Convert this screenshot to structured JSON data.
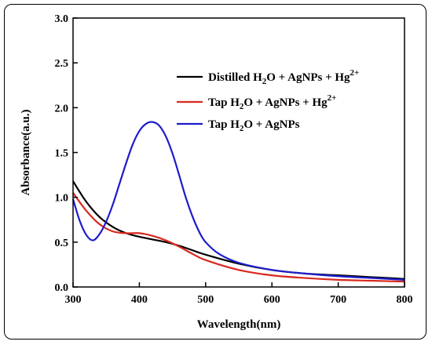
{
  "chart_data": {
    "type": "line",
    "xlabel": "Wavelength(nm)",
    "ylabel": "Absorbance(a.u.)",
    "xlim": [
      300,
      800
    ],
    "ylim": [
      0.0,
      3.0
    ],
    "xticks": [
      "300",
      "400",
      "500",
      "600",
      "700",
      "800"
    ],
    "yticks": [
      "0.0",
      "0.5",
      "1.0",
      "1.5",
      "2.0",
      "2.5",
      "3.0"
    ],
    "grid": false,
    "legend_position": "top-right",
    "series": [
      {
        "name_parts": [
          "Distilled H",
          "2",
          "O + AgNPs + Hg",
          "2+"
        ],
        "name_styles": [
          "normal",
          "sub",
          "normal",
          "sup"
        ],
        "color": "#000000",
        "x": [
          300,
          320,
          340,
          360,
          380,
          400,
          420,
          440,
          460,
          480,
          500,
          550,
          600,
          650,
          700,
          750,
          800
        ],
        "y": [
          1.18,
          0.95,
          0.78,
          0.67,
          0.6,
          0.56,
          0.53,
          0.5,
          0.46,
          0.41,
          0.36,
          0.26,
          0.19,
          0.15,
          0.13,
          0.11,
          0.09
        ]
      },
      {
        "name_parts": [
          "Tap H",
          "2",
          "O + AgNPs + Hg",
          "2+"
        ],
        "name_styles": [
          "normal",
          "sub",
          "normal",
          "sup"
        ],
        "color": "#d9281e",
        "x": [
          300,
          320,
          340,
          360,
          380,
          400,
          420,
          440,
          460,
          480,
          500,
          550,
          600,
          650,
          700,
          750,
          800
        ],
        "y": [
          1.05,
          0.85,
          0.7,
          0.62,
          0.6,
          0.6,
          0.57,
          0.52,
          0.45,
          0.37,
          0.3,
          0.19,
          0.13,
          0.1,
          0.08,
          0.07,
          0.06
        ]
      },
      {
        "name_parts": [
          "Tap H",
          "2",
          "O + AgNPs"
        ],
        "name_styles": [
          "normal",
          "sub",
          "normal"
        ],
        "color": "#1c1ccc",
        "x": [
          300,
          310,
          320,
          330,
          340,
          350,
          360,
          370,
          380,
          390,
          400,
          410,
          420,
          430,
          440,
          450,
          460,
          470,
          480,
          490,
          500,
          520,
          550,
          600,
          650,
          700,
          750,
          800
        ],
        "y": [
          0.98,
          0.74,
          0.58,
          0.52,
          0.59,
          0.73,
          0.92,
          1.15,
          1.38,
          1.59,
          1.74,
          1.82,
          1.84,
          1.8,
          1.68,
          1.49,
          1.25,
          1.0,
          0.79,
          0.62,
          0.5,
          0.37,
          0.27,
          0.19,
          0.15,
          0.12,
          0.1,
          0.08
        ]
      }
    ]
  }
}
